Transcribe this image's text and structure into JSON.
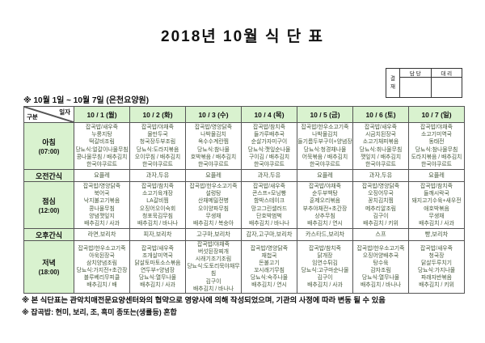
{
  "title": "2018년 10월 식 단 표",
  "subtitle": "※ 10월 1일 ~ 10월 7일 (은천요양원)",
  "approval": {
    "stamp": "결재",
    "col1": "담 당",
    "col2": "대 리"
  },
  "colors": {
    "header_bg": "#d9f2cf",
    "menu_text": "#47583d",
    "border": "#555555"
  },
  "table": {
    "corner": {
      "top": "일자",
      "bottom": "구분"
    },
    "columns": [
      "10 / 1 (월)",
      "10 / 2 (화)",
      "10 / 3 (수)",
      "10 / 4 (목)",
      "10 / 5 (금)",
      "10 / 6 (토)",
      "10 / 7 (일)"
    ],
    "rows": [
      {
        "label": "아침",
        "sub": "(07:00)",
        "cells": [
          [
            "잡곡밥/새우죽",
            "누룽지탕",
            "떡갈비조림",
            "당뇨식:얼갈이나물무침",
            "콩나물무침 / 배추김치",
            "한국야쿠르트"
          ],
          [
            "잡곡밥/야채죽",
            "물만두국",
            "청국장두부조림",
            "당뇨식:도라지볶음",
            "오이무침 / 배추김치",
            "한국야쿠르트"
          ],
          [
            "잡곡밥/영양닭죽",
            "나박물김치",
            "옥수수계란찜",
            "당뇨식:참나물",
            "호박볶음 / 배추김치",
            "한국야쿠르트"
          ],
          [
            "잡곡밥/참치죽",
            "들가루배추국",
            "순살가자미구이",
            "당뇨식:깻잎순나물",
            "구이김 / 배추김치",
            "한국야쿠르트"
          ],
          [
            "잡곡밥/한우소고기죽",
            "나박물김치",
            "들기름두부구이+양념장",
            "당뇨식:청경채나물",
            "어묵볶음 / 배추김치",
            "한국야쿠르트"
          ],
          [
            "잡곡밥/새우죽",
            "시금치된장국",
            "소고기채피볶음",
            "당뇨식:취나물무침",
            "깻잎지 / 배추김치",
            "한국야쿠르트"
          ],
          [
            "잡곡밥/야채죽",
            "소고기미역국",
            "동태전",
            "당뇨식:참나물무침",
            "도라지볶음 / 배추김치",
            "한국야쿠르트"
          ]
        ]
      },
      {
        "label": "오전간식",
        "sub": "",
        "cells": [
          "요플레",
          "과자,두유",
          "요플레",
          "과자,두유",
          "요플레",
          "과자,두유",
          "요플레"
        ]
      },
      {
        "label": "점심",
        "sub": "(12:00)",
        "cells": [
          [
            "잡곡밥/영양닭죽",
            "북어국",
            "낙지불고기볶음",
            "콩나물무침",
            "양념깻잎지",
            "배추김치 / 사과"
          ],
          [
            "잡곡밥/참치죽",
            "소고기육개장",
            "LA갈비찜",
            "오징어오이숙회",
            "청포묵김무침",
            "배추김치 / 바나나"
          ],
          [
            "잡곡밥/한우소고기죽",
            "설렁탕",
            "산채메밀전병",
            "오이양파무침",
            "무생채",
            "배추김치 / 복숭아"
          ],
          [
            "잡곡밥/새우죽",
            "콘스프+모닝빵",
            "함박스테이크",
            "망고그린샐러드",
            "단호박범벅",
            "배추김치 / 바나나"
          ],
          [
            "잡곡밥/야채죽",
            "순두부백탕",
            "훈제오리볶음",
            "부추야채전+초간장",
            "상추무침",
            "배추김치 / 연시"
          ],
          [
            "잡곡밥/영양닭죽",
            "오징어무국",
            "꽁치김치찜",
            "메추리알조림",
            "김구이",
            "배추김치 / 키위"
          ],
          [
            "잡곡밥/참치죽",
            "들깨시락국",
            "돼지고기수육+새우전",
            "애호박볶음",
            "무생채",
            "배추김치 / 사과"
          ]
        ]
      },
      {
        "label": "오후간식",
        "sub": "",
        "cells": [
          "라면,보리차",
          "피자,보리차",
          "고구마,보리차",
          "감자,고구마,보리차",
          "카스타드,보리차",
          "스프",
          "빵,보리차"
        ]
      },
      {
        "label": "저녁",
        "sub": "(18:00)",
        "cells": [
          [
            "잡곡밥/한우소고기죽",
            "아욱된장국",
            "삼치양념조림",
            "당뇨식:가지전+초간장",
            "블루베리무피클",
            "배추김치 / 배"
          ],
          [
            "잡곡밥/새우죽",
            "조개살미역국",
            "닭살토마토소스볶음",
            "연두부+양념장",
            "당뇨식:열무나물",
            "배추김치 / 사과"
          ],
          [
            "잡곡밥/야채죽",
            "버섯된장찌개",
            "시래기조기조림",
            "당뇨식:도토리묵야채무침",
            "김구이",
            "배추김치 / 바나나"
          ],
          [
            "잡곡밥/영양닭죽",
            "재첩국",
            "돈불고기",
            "꼬시래기무침",
            "당뇨식:숙주나물",
            "배추김치 / 연시"
          ],
          [
            "잡곡밥/참치죽",
            "닭개장",
            "임연수튀김",
            "당뇨식:고구마순나물",
            "김구이",
            "배추김치 / 사과"
          ],
          [
            "잡곡밥/한우소고기죽",
            "오징어양배추국",
            "탕수육",
            "감자조림",
            "당뇨식:열무나물",
            "배추김치 / 바나나"
          ],
          [
            "잡곡밥/새우죽",
            "청국장",
            "닭살두루치기",
            "당뇨식:가지나물",
            "파래자반볶음",
            "배추김치 / 키위"
          ]
        ]
      }
    ]
  },
  "notes": [
    "※ 본 식단표는 관악치매전문요양센터와의 협약으로 영양사에 의해 작성되었으며, 기관의 사정에 따라 변동 될 수 있음",
    "※ 잡곡밥: 현미, 보리, 조, 흑미 종또는(생률등) 혼합"
  ]
}
